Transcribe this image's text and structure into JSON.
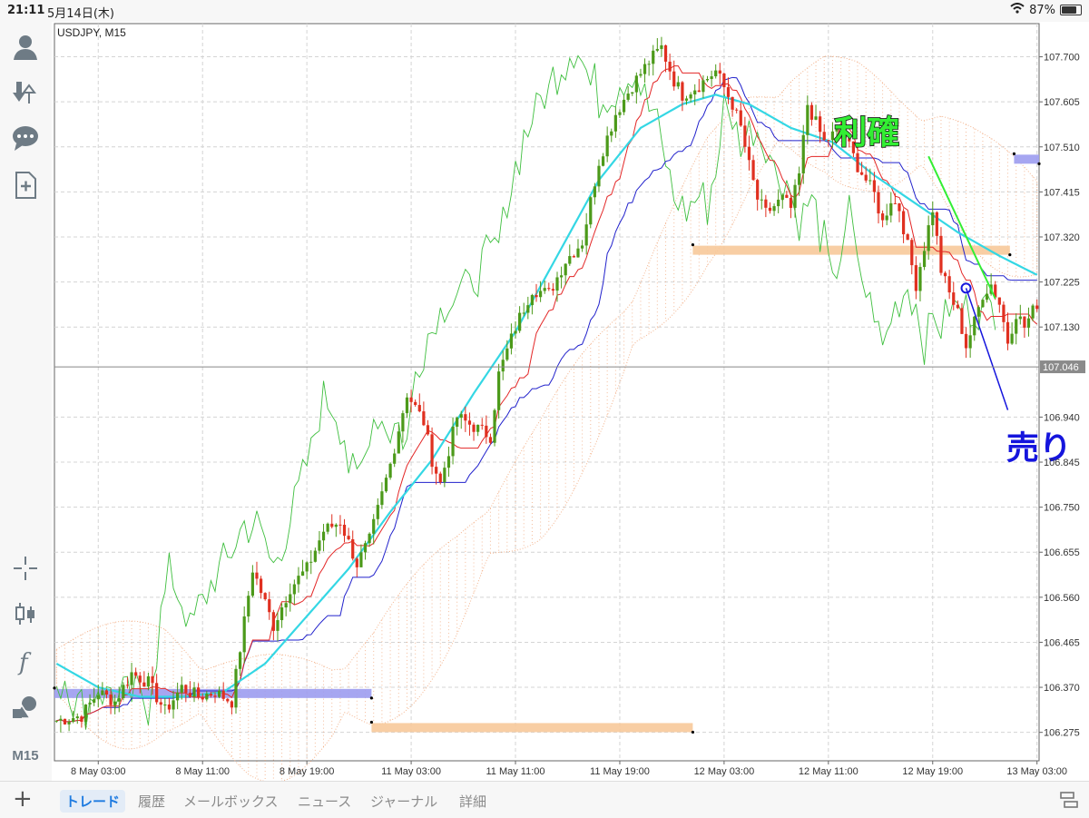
{
  "status_bar": {
    "time": "21:11",
    "date": "5月14日(木)",
    "battery": "87%",
    "battery_fraction": 0.87
  },
  "toolbar": {
    "items": [
      "account-icon",
      "trade-icon",
      "chat-icon",
      "new-order-icon",
      "crosshair-icon",
      "candles-icon",
      "indicator-icon",
      "objects-icon",
      "timeframe-label"
    ],
    "timeframe": "M15"
  },
  "tabs": {
    "active": 0,
    "items": [
      "トレード",
      "履歴",
      "メールボックス",
      "ニュース",
      "ジャーナル",
      "詳細"
    ]
  },
  "chart_data": {
    "type": "candlestick",
    "symbol_label": "USDJPY, M15",
    "ylim": [
      106.215,
      107.77
    ],
    "y_ticks": [
      "107.700",
      "107.605",
      "107.510",
      "107.415",
      "107.320",
      "107.225",
      "107.130",
      "106.940",
      "106.845",
      "106.750",
      "106.655",
      "106.560",
      "106.465",
      "106.370",
      "106.275"
    ],
    "x_ticks": [
      "8 May 03:00",
      "8 May 11:00",
      "8 May 19:00",
      "11 May 03:00",
      "11 May 11:00",
      "11 May 19:00",
      "12 May 03:00",
      "12 May 11:00",
      "12 May 19:00",
      "13 May 03:00"
    ],
    "n_bars": 236,
    "x_tick_bars": [
      10,
      35,
      60,
      85,
      110,
      135,
      160,
      185,
      210,
      235
    ],
    "current_price": 107.046,
    "current_price_label": "107.046",
    "price_path": [
      [
        0,
        106.3
      ],
      [
        6,
        106.31
      ],
      [
        10,
        106.36
      ],
      [
        14,
        106.34
      ],
      [
        18,
        106.4
      ],
      [
        22,
        106.38
      ],
      [
        26,
        106.32
      ],
      [
        30,
        106.37
      ],
      [
        34,
        106.35
      ],
      [
        38,
        106.36
      ],
      [
        42,
        106.34
      ],
      [
        47,
        106.62
      ],
      [
        52,
        106.5
      ],
      [
        56,
        106.58
      ],
      [
        60,
        106.62
      ],
      [
        64,
        106.7
      ],
      [
        68,
        106.72
      ],
      [
        72,
        106.63
      ],
      [
        75,
        106.68
      ],
      [
        80,
        106.84
      ],
      [
        84,
        106.99
      ],
      [
        88,
        106.93
      ],
      [
        90,
        106.85
      ],
      [
        92,
        106.8
      ],
      [
        96,
        106.94
      ],
      [
        100,
        106.92
      ],
      [
        104,
        106.9
      ],
      [
        106,
        107.03
      ],
      [
        110,
        107.13
      ],
      [
        114,
        107.21
      ],
      [
        118,
        107.2
      ],
      [
        122,
        107.27
      ],
      [
        126,
        107.31
      ],
      [
        130,
        107.48
      ],
      [
        134,
        107.58
      ],
      [
        138,
        107.64
      ],
      [
        142,
        107.69
      ],
      [
        145,
        107.72
      ],
      [
        148,
        107.65
      ],
      [
        150,
        107.62
      ],
      [
        154,
        107.64
      ],
      [
        158,
        107.67
      ],
      [
        162,
        107.6
      ],
      [
        164,
        107.55
      ],
      [
        166,
        107.47
      ],
      [
        168,
        107.4
      ],
      [
        170,
        107.37
      ],
      [
        174,
        107.4
      ],
      [
        176,
        107.38
      ],
      [
        178,
        107.45
      ],
      [
        180,
        107.6
      ],
      [
        184,
        107.52
      ],
      [
        188,
        107.55
      ],
      [
        192,
        107.47
      ],
      [
        196,
        107.41
      ],
      [
        198,
        107.35
      ],
      [
        200,
        107.4
      ],
      [
        202,
        107.38
      ],
      [
        204,
        107.3
      ],
      [
        206,
        107.22
      ],
      [
        208,
        107.3
      ],
      [
        210,
        107.38
      ],
      [
        212,
        107.25
      ],
      [
        214,
        107.2
      ],
      [
        216,
        107.16
      ],
      [
        218,
        107.09
      ],
      [
        220,
        107.14
      ],
      [
        222,
        107.2
      ],
      [
        224,
        107.22
      ],
      [
        226,
        107.18
      ],
      [
        228,
        107.1
      ],
      [
        230,
        107.16
      ],
      [
        232,
        107.13
      ],
      [
        235,
        107.18
      ]
    ],
    "indicators": {
      "line_colors": {
        "candle_up": "#4c9a1a",
        "candle_down": "#e03020",
        "red_line": "#e32626",
        "blue_line": "#2222cc",
        "cyan_ma": "#34d7e4",
        "green_line": "#3fbf3f",
        "cloud": "#f0a070"
      },
      "cyan_ma_path": [
        [
          0,
          106.42
        ],
        [
          10,
          106.37
        ],
        [
          20,
          106.35
        ],
        [
          30,
          106.35
        ],
        [
          40,
          106.36
        ],
        [
          50,
          106.42
        ],
        [
          60,
          106.52
        ],
        [
          70,
          106.62
        ],
        [
          80,
          106.74
        ],
        [
          90,
          106.85
        ],
        [
          100,
          106.99
        ],
        [
          110,
          107.12
        ],
        [
          120,
          107.28
        ],
        [
          130,
          107.44
        ],
        [
          140,
          107.55
        ],
        [
          150,
          107.6
        ],
        [
          158,
          107.62
        ],
        [
          166,
          107.6
        ],
        [
          176,
          107.55
        ],
        [
          186,
          107.52
        ],
        [
          196,
          107.45
        ],
        [
          206,
          107.39
        ],
        [
          216,
          107.33
        ],
        [
          226,
          107.28
        ],
        [
          235,
          107.24
        ]
      ]
    },
    "horizontal_bands": [
      {
        "color": "#9c9cf0",
        "price": 106.357,
        "from_bar": 0,
        "to_bar": 76
      },
      {
        "color": "#f7c99a",
        "price": 106.285,
        "from_bar": 76,
        "to_bar": 153
      },
      {
        "color": "#f7c99a",
        "price": 107.292,
        "from_bar": 153,
        "to_bar": 229
      },
      {
        "color": "#9c9cf0",
        "price": 107.484,
        "from_bar": 230,
        "to_bar": 236
      }
    ],
    "annotations": {
      "take_profit": {
        "text": "利確",
        "bar": 199,
        "price": 107.54,
        "color": "#33ee33"
      },
      "sell": {
        "text": "売り",
        "bar": 232,
        "price": 106.875,
        "color": "#1515dd"
      }
    }
  }
}
